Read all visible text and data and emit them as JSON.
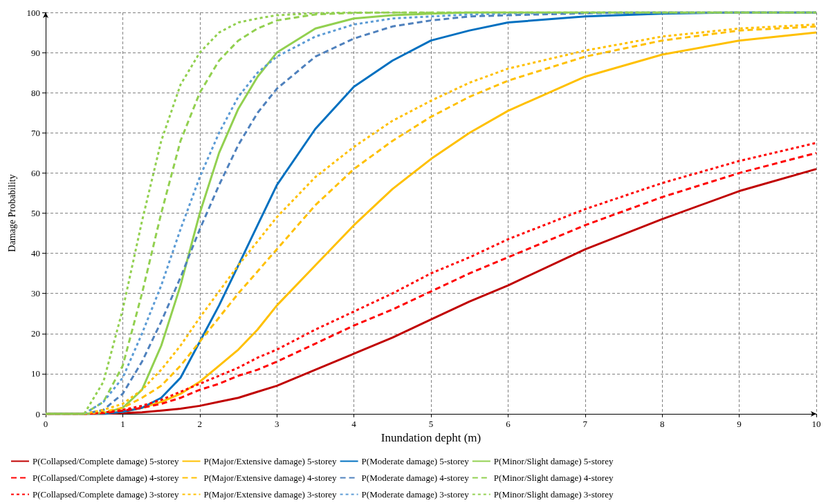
{
  "chart_data": {
    "type": "line",
    "xlabel": "Inundation depht (m)",
    "ylabel": "Damage Probability",
    "x": [
      0,
      0.5,
      0.75,
      1,
      1.25,
      1.5,
      1.75,
      2,
      2.25,
      2.5,
      2.75,
      3,
      3.5,
      4,
      4.5,
      5,
      5.5,
      6,
      7,
      8,
      9,
      10
    ],
    "xlim": [
      0,
      10
    ],
    "xticks": [
      0,
      1,
      2,
      3,
      4,
      5,
      6,
      7,
      8,
      9,
      10
    ],
    "ylim": [
      0,
      100
    ],
    "yticks": [
      0,
      10,
      20,
      30,
      40,
      50,
      60,
      70,
      80,
      90,
      100
    ],
    "grid": true,
    "legend": "bottom",
    "marker": "none",
    "series": [
      {
        "name": "P(Collapsed/Complete damage) 5-storey",
        "color": "#c00000",
        "line_style": "solid",
        "values": [
          0,
          0,
          0,
          0.2,
          0.4,
          0.8,
          1.3,
          2,
          3,
          4,
          5.5,
          7,
          11,
          15,
          19,
          23.5,
          28,
          32,
          41,
          48.5,
          55.5,
          61
        ]
      },
      {
        "name": "P(Major/Extensive damage) 5-storey",
        "color": "#ffc000",
        "line_style": "solid",
        "values": [
          0,
          0,
          0.1,
          0.5,
          1.5,
          3,
          5,
          8,
          12,
          16,
          21,
          27,
          37,
          47,
          56,
          63.5,
          70,
          75.5,
          84,
          89.5,
          93,
          95
        ]
      },
      {
        "name": "P(Moderate damage) 5-storey",
        "color": "#0070c0",
        "line_style": "solid",
        "values": [
          0,
          0,
          0,
          0.5,
          1.5,
          4,
          9,
          18,
          27,
          37,
          47,
          57,
          71,
          81.5,
          88,
          93,
          95.5,
          97.5,
          99,
          99.7,
          100,
          100
        ]
      },
      {
        "name": "P(Minor/Slight damage) 5-storey",
        "color": "#92d050",
        "line_style": "solid",
        "values": [
          0,
          0,
          0.2,
          1.5,
          6,
          17,
          32,
          50,
          65,
          76,
          84,
          90,
          96,
          98.5,
          99.3,
          99.7,
          100,
          100,
          100,
          100,
          100,
          100
        ]
      },
      {
        "name": "P(Collapsed/Complete damage) 4-storey",
        "color": "#ff0000",
        "line_style": "dashed",
        "values": [
          0,
          0,
          0.2,
          0.8,
          1.5,
          2.5,
          4,
          6,
          7.5,
          9.5,
          11,
          13,
          17.5,
          22,
          26,
          30.5,
          35,
          39,
          47,
          54,
          60,
          65
        ]
      },
      {
        "name": "P(Major/Extensive damage) 4-storey",
        "color": "#ffc000",
        "line_style": "dashed",
        "values": [
          0,
          0,
          0.5,
          1.5,
          4,
          7,
          12,
          18,
          24,
          30,
          35.5,
          41,
          52,
          61,
          68,
          74,
          79,
          83,
          89,
          93,
          95.5,
          96.5
        ]
      },
      {
        "name": "P(Moderate damage) 4-storey",
        "color": "#4f81bd",
        "line_style": "dashed",
        "values": [
          0,
          0,
          1,
          5,
          13,
          23,
          34,
          46,
          57,
          67,
          75,
          81,
          89,
          93.5,
          96.5,
          98,
          99,
          99.3,
          99.8,
          100,
          100,
          100
        ]
      },
      {
        "name": "P(Minor/Slight damage) 4-storey",
        "color": "#92d050",
        "line_style": "dashed",
        "values": [
          0,
          0,
          3,
          12,
          30,
          50,
          68,
          80,
          88,
          93,
          96,
          98,
          99.5,
          99.9,
          100,
          100,
          100,
          100,
          100,
          100,
          100,
          100
        ]
      },
      {
        "name": "P(Collapsed/Complete damage) 3-storey",
        "color": "#ff0000",
        "line_style": "dotted",
        "values": [
          0,
          0,
          0.3,
          1,
          2,
          3.5,
          5.5,
          7.5,
          9.5,
          11.5,
          14,
          16,
          21,
          25.5,
          30,
          35,
          39,
          43.5,
          51,
          57.5,
          63,
          67.5
        ]
      },
      {
        "name": "P(Major/Extensive damage) 3-storey",
        "color": "#ffc000",
        "line_style": "dotted",
        "values": [
          0,
          0,
          1,
          2.5,
          6,
          11,
          17,
          24,
          30.5,
          37,
          43,
          49,
          59,
          66.5,
          73,
          78,
          82.5,
          86,
          90.5,
          94,
          96,
          97
        ]
      },
      {
        "name": "P(Moderate damage) 3-storey",
        "color": "#5b9bd5",
        "line_style": "dotted",
        "values": [
          0,
          0,
          3,
          9,
          20,
          32,
          46,
          59,
          70,
          79,
          85,
          89,
          94,
          97,
          98.5,
          99,
          99.5,
          99.7,
          100,
          100,
          100,
          100
        ]
      },
      {
        "name": "P(Minor/Slight damage) 3-storey",
        "color": "#92d050",
        "line_style": "dotted",
        "values": [
          0,
          0,
          8,
          26,
          48,
          68,
          82,
          90,
          95,
          97.5,
          98.5,
          99.3,
          99.8,
          100,
          100,
          100,
          100,
          100,
          100,
          100,
          100,
          100
        ]
      }
    ]
  }
}
